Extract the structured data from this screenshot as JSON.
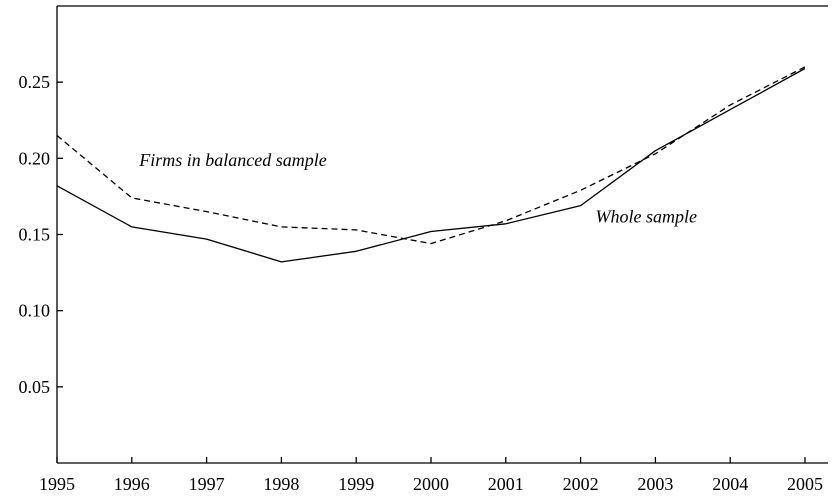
{
  "chart_data": {
    "type": "line",
    "title": "",
    "xlabel": "",
    "ylabel": "",
    "x": [
      1995,
      1996,
      1997,
      1998,
      1999,
      2000,
      2001,
      2002,
      2003,
      2004,
      2005
    ],
    "xlim": [
      1995,
      2005
    ],
    "ylim": [
      0.0,
      0.3
    ],
    "x_tick_labels": [
      "1995",
      "1996",
      "1997",
      "1998",
      "1999",
      "2000",
      "2001",
      "2002",
      "2003",
      "2004",
      "2005"
    ],
    "y_ticks": [
      0.05,
      0.1,
      0.15,
      0.2,
      0.25
    ],
    "y_tick_labels": [
      "0.05",
      "0.10",
      "0.15",
      "0.20",
      "0.25"
    ],
    "grid": false,
    "legend": "none",
    "series": [
      {
        "id": "whole",
        "style": "solid",
        "color": "#000000",
        "values": [
          0.182,
          0.155,
          0.147,
          0.132,
          0.139,
          0.152,
          0.157,
          0.169,
          0.205,
          0.232,
          0.259
        ]
      },
      {
        "id": "balanced",
        "style": "dashed",
        "color": "#000000",
        "values": [
          0.215,
          0.174,
          0.165,
          0.155,
          0.153,
          0.144,
          0.159,
          0.179,
          0.203,
          0.235,
          0.26
        ]
      }
    ],
    "annotations": [
      {
        "text": "Firms in balanced sample",
        "series": "balanced",
        "anchor_x": 1996.1,
        "anchor_y": 0.195
      },
      {
        "text": "Whole sample",
        "series": "whole",
        "anchor_x": 2002.2,
        "anchor_y": 0.158
      }
    ]
  }
}
